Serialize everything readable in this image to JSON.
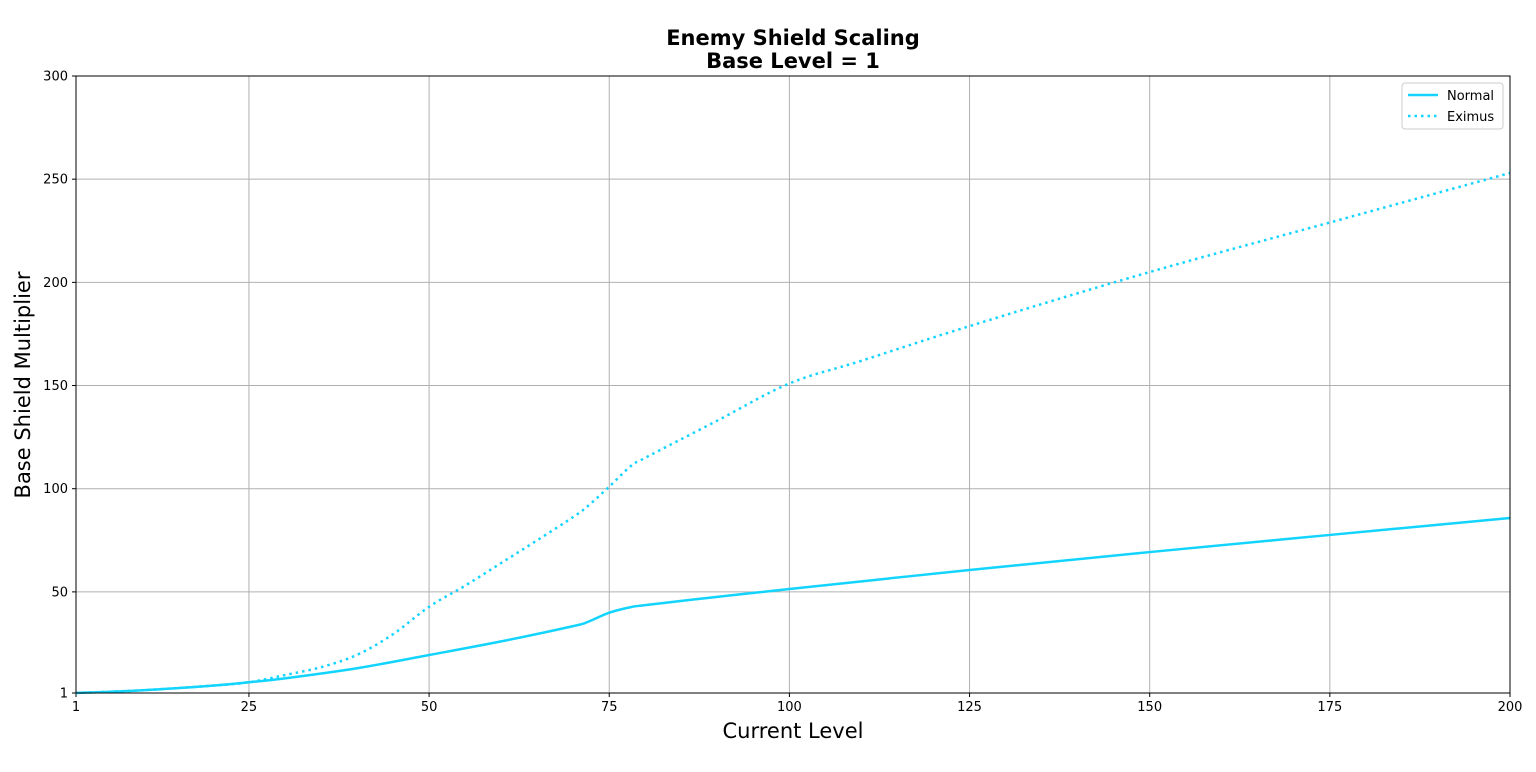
{
  "chart_data": {
    "type": "line",
    "title": "Enemy Shield Scaling",
    "subtitle": "Base Level = 1",
    "xlabel": "Current Level",
    "ylabel": "Base Shield Multiplier",
    "xlim": [
      1,
      200
    ],
    "ylim": [
      1,
      300
    ],
    "xticks": [
      "1",
      "25",
      "50",
      "75",
      "100",
      "125",
      "150",
      "175",
      "200"
    ],
    "yticks": [
      "1",
      "50",
      "100",
      "150",
      "200",
      "250",
      "300"
    ],
    "grid": true,
    "legend_position": "top-right",
    "series": [
      {
        "name": "Normal",
        "style": "solid",
        "color": "#12d4ff",
        "x": [
          1,
          10,
          20,
          25,
          30,
          40,
          50,
          60,
          70,
          72,
          75,
          78,
          80,
          90,
          100,
          125,
          150,
          175,
          200
        ],
        "y": [
          1,
          2.3,
          4.6,
          6.2,
          8.1,
          13,
          19.4,
          26,
          33.4,
          35.4,
          39.9,
          42.6,
          43.6,
          47.6,
          51.4,
          60.6,
          69.3,
          77.6,
          85.8
        ]
      },
      {
        "name": "Eximus",
        "style": "dotted",
        "color": "#12d4ff",
        "x": [
          1,
          10,
          20,
          25,
          30,
          35,
          40,
          45,
          50,
          55,
          60,
          65,
          70,
          72,
          75,
          78,
          80,
          90,
          100,
          110,
          125,
          150,
          175,
          200
        ],
        "y": [
          1,
          2.3,
          4.6,
          6.2,
          9.7,
          13.5,
          19.5,
          29.5,
          42.8,
          53,
          64,
          75,
          86.3,
          91.5,
          101,
          111,
          115,
          133,
          151,
          162,
          178.8,
          205,
          229,
          253
        ]
      }
    ]
  }
}
